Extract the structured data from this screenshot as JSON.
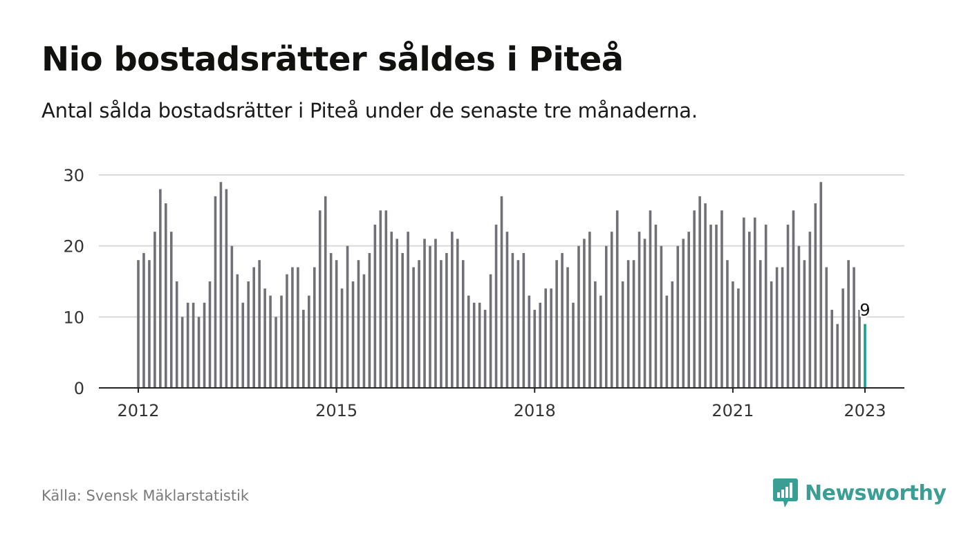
{
  "header": {
    "title": "Nio bostadsrätter såldes i Piteå",
    "subtitle": "Antal sålda bostadsrätter i Piteå under de senaste tre månaderna."
  },
  "footer": {
    "source": "Källa: Svensk Mäklarstatistik",
    "brand": "Newsworthy",
    "brand_icon": "bar-chart-speech-bubble-icon"
  },
  "colors": {
    "bar": "#707076",
    "highlight": "#1a9e8c",
    "grid": "#d9d9d9",
    "axis": "#222222",
    "brand": "#3a9e94"
  },
  "chart_data": {
    "type": "bar",
    "title": "Nio bostadsrätter såldes i Piteå",
    "xlabel": "",
    "ylabel": "",
    "ylim": [
      0,
      30
    ],
    "yticks": [
      0,
      10,
      20,
      30
    ],
    "grid": true,
    "x_start": "2012-01",
    "x_end": "2023-01",
    "xticks": [
      {
        "label": "2012",
        "index": 0
      },
      {
        "label": "2015",
        "index": 36
      },
      {
        "label": "2018",
        "index": 72
      },
      {
        "label": "2021",
        "index": 108
      },
      {
        "label": "2023",
        "index": 132
      }
    ],
    "values": [
      18,
      19,
      18,
      22,
      28,
      26,
      22,
      15,
      10,
      12,
      12,
      10,
      12,
      15,
      27,
      29,
      28,
      20,
      16,
      12,
      15,
      17,
      18,
      14,
      13,
      10,
      13,
      16,
      17,
      17,
      11,
      13,
      17,
      25,
      27,
      19,
      18,
      14,
      20,
      15,
      18,
      16,
      19,
      23,
      25,
      25,
      22,
      21,
      19,
      22,
      17,
      18,
      21,
      20,
      21,
      18,
      19,
      22,
      21,
      18,
      13,
      12,
      12,
      11,
      16,
      23,
      27,
      22,
      19,
      18,
      19,
      13,
      11,
      12,
      14,
      14,
      18,
      19,
      17,
      12,
      20,
      21,
      22,
      15,
      13,
      20,
      22,
      25,
      15,
      18,
      18,
      22,
      21,
      25,
      23,
      20,
      13,
      15,
      20,
      21,
      22,
      25,
      27,
      26,
      23,
      23,
      25,
      18,
      15,
      14,
      24,
      22,
      24,
      18,
      23,
      15,
      17,
      17,
      23,
      25,
      20,
      18,
      22,
      26,
      29,
      17,
      11,
      9,
      14,
      18,
      17,
      11,
      9
    ],
    "highlight_index": 132,
    "annotation": "9"
  }
}
